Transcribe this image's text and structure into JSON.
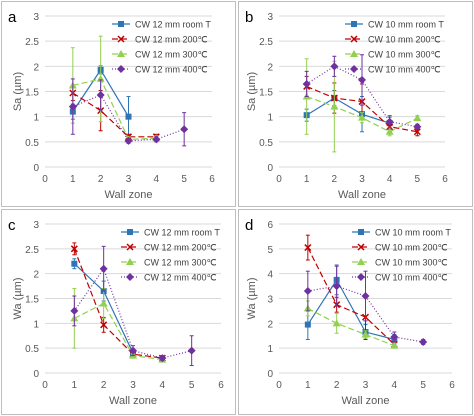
{
  "figure": {
    "panel_border": "#bfbfbf",
    "grid_color": "#d9d9d9",
    "text_color": "#595959"
  },
  "series_styles": [
    {
      "color": "#2e75b6",
      "dash": "",
      "marker": "square"
    },
    {
      "color": "#c00000",
      "dash": "6,3",
      "marker": "cross"
    },
    {
      "color": "#92d050",
      "dash": "6,3",
      "marker": "triangle"
    },
    {
      "color": "#7030a0",
      "dash": "1,2",
      "marker": "diamond"
    }
  ],
  "chart_data": [
    {
      "panel_label": "a",
      "type": "line",
      "xlabel": "Wall zone",
      "ylabel": "Sa (µm)",
      "xlim": [
        0,
        6
      ],
      "ylim": [
        0,
        3
      ],
      "xticks": [
        0,
        1,
        2,
        3,
        4,
        5,
        6
      ],
      "yticks": [
        0,
        0.5,
        1,
        1.5,
        2,
        2.5,
        3
      ],
      "grid": true,
      "legend_position": "top-right",
      "series": [
        {
          "name": "CW 12 mm room T",
          "x": [
            1,
            2,
            3
          ],
          "y": [
            1.1,
            1.93,
            1.0
          ],
          "err": [
            0.15,
            0.08,
            0.4
          ]
        },
        {
          "name": "CW 12 mm 200℃",
          "x": [
            1,
            2,
            3,
            4
          ],
          "y": [
            1.47,
            1.12,
            0.6,
            0.6
          ],
          "err": [
            0.15,
            0.4,
            0.05,
            0.05
          ]
        },
        {
          "name": "CW 12 mm 300℃",
          "x": [
            1,
            2,
            3,
            4
          ],
          "y": [
            1.62,
            1.75,
            0.55,
            0.57
          ],
          "err": [
            0.75,
            0.85,
            0.05,
            0.05
          ]
        },
        {
          "name": "CW 12 mm 400℃",
          "x": [
            1,
            2,
            3,
            4,
            5
          ],
          "y": [
            1.2,
            1.43,
            0.52,
            0.55,
            0.75
          ],
          "err": [
            0.55,
            0.3,
            0.05,
            0.05,
            0.33
          ]
        }
      ]
    },
    {
      "panel_label": "b",
      "type": "line",
      "xlabel": "Wall zone",
      "ylabel": "Sa (µm)",
      "xlim": [
        0,
        6
      ],
      "ylim": [
        0,
        3
      ],
      "xticks": [
        0,
        1,
        2,
        3,
        4,
        5,
        6
      ],
      "yticks": [
        0,
        0.5,
        1,
        1.5,
        2,
        2.5,
        3
      ],
      "grid": true,
      "legend_position": "top-right",
      "series": [
        {
          "name": "CW 10 mm room T",
          "x": [
            1,
            2,
            3,
            4
          ],
          "y": [
            1.03,
            1.37,
            1.05,
            0.87
          ],
          "err": [
            0.12,
            0.15,
            0.35,
            0.12
          ]
        },
        {
          "name": "CW 10 mm 200℃",
          "x": [
            1,
            2,
            3,
            4,
            5
          ],
          "y": [
            1.6,
            1.37,
            1.3,
            0.8,
            0.7
          ],
          "err": [
            0.2,
            0.3,
            0.35,
            0.1,
            0.08
          ]
        },
        {
          "name": "CW 10 mm 300℃",
          "x": [
            1,
            2,
            3,
            4,
            5
          ],
          "y": [
            1.4,
            1.2,
            0.98,
            0.7,
            0.97
          ],
          "err": [
            0.75,
            0.9,
            0.1,
            0.08,
            0.05
          ]
        },
        {
          "name": "CW 10 mm 400℃",
          "x": [
            1,
            2,
            3,
            4,
            5
          ],
          "y": [
            1.65,
            2.0,
            1.73,
            0.9,
            0.8
          ],
          "err": [
            0.25,
            0.2,
            0.5,
            0.12,
            0.05
          ]
        }
      ]
    },
    {
      "panel_label": "c",
      "type": "line",
      "xlabel": "Wall zone",
      "ylabel": "Wa (µm)",
      "xlim": [
        0,
        6
      ],
      "ylim": [
        0,
        3
      ],
      "xticks": [
        0,
        1,
        2,
        3,
        4,
        5,
        6
      ],
      "yticks": [
        0,
        0.5,
        1,
        1.5,
        2,
        2.5,
        3
      ],
      "grid": true,
      "legend_position": "top-right",
      "series": [
        {
          "name": "CW 12 mm room T",
          "x": [
            1,
            2,
            3
          ],
          "y": [
            2.2,
            1.65,
            0.4
          ],
          "err": [
            0.1,
            0.2,
            0.08
          ]
        },
        {
          "name": "CW 12 mm 200℃",
          "x": [
            1,
            2,
            3,
            4
          ],
          "y": [
            2.5,
            0.97,
            0.38,
            0.3
          ],
          "err": [
            0.12,
            0.15,
            0.05,
            0.03
          ]
        },
        {
          "name": "CW 12 mm 300℃",
          "x": [
            1,
            2,
            3,
            4
          ],
          "y": [
            1.1,
            1.4,
            0.35,
            0.27
          ],
          "err": [
            0.6,
            0.3,
            0.05,
            0.03
          ]
        },
        {
          "name": "CW 12 mm 400℃",
          "x": [
            1,
            2,
            3,
            4,
            5
          ],
          "y": [
            1.25,
            2.1,
            0.45,
            0.3,
            0.45
          ],
          "err": [
            0.3,
            0.45,
            0.1,
            0.05,
            0.3
          ]
        }
      ]
    },
    {
      "panel_label": "d",
      "type": "line",
      "xlabel": "Wall zone",
      "ylabel": "Wa (µm)",
      "xlim": [
        0,
        6
      ],
      "ylim": [
        0,
        6
      ],
      "xticks": [
        0,
        1,
        2,
        3,
        4,
        5,
        6
      ],
      "yticks": [
        0,
        1,
        2,
        3,
        4,
        5,
        6
      ],
      "grid": true,
      "legend_position": "top-right",
      "series": [
        {
          "name": "CW 10 mm room T",
          "x": [
            1,
            2,
            3,
            4
          ],
          "y": [
            1.95,
            3.75,
            1.65,
            1.35
          ],
          "err": [
            0.6,
            0.6,
            0.3,
            0.2
          ]
        },
        {
          "name": "CW 10 mm 200℃",
          "x": [
            1,
            2,
            3,
            4
          ],
          "y": [
            5.05,
            2.75,
            2.25,
            1.15
          ],
          "err": [
            0.5,
            0.3,
            0.9,
            0.1
          ]
        },
        {
          "name": "CW 10 mm 300℃",
          "x": [
            1,
            2,
            3,
            4
          ],
          "y": [
            2.6,
            2.0,
            1.55,
            1.1
          ],
          "err": [
            0.3,
            0.4,
            0.15,
            0.1
          ]
        },
        {
          "name": "CW 10 mm 400℃",
          "x": [
            1,
            2,
            3,
            4,
            5
          ],
          "y": [
            3.3,
            3.5,
            3.1,
            1.45,
            1.25
          ],
          "err": [
            0.8,
            0.8,
            1.0,
            0.2,
            0.1
          ]
        }
      ]
    }
  ]
}
